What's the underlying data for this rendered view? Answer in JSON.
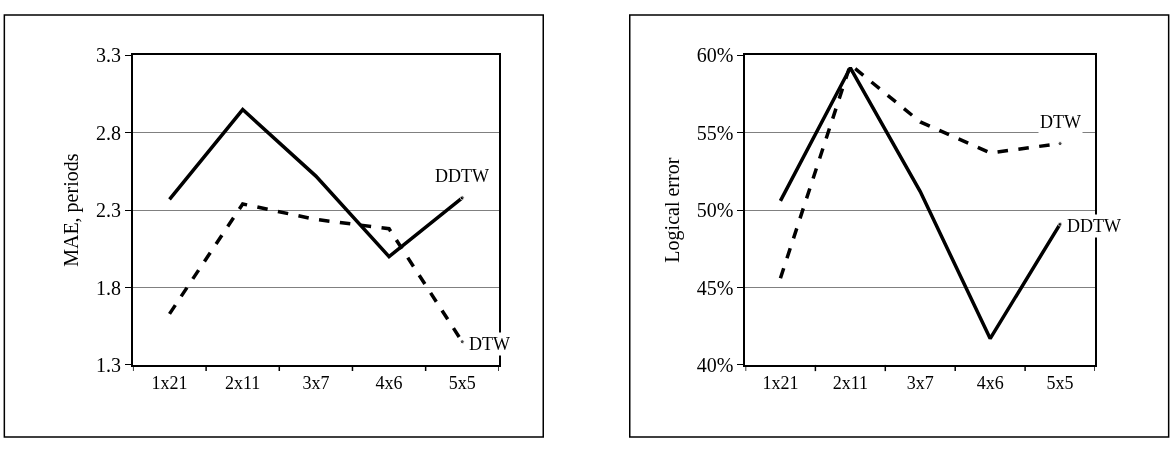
{
  "chart_data": [
    {
      "type": "line",
      "ylabel": "MAE, periods",
      "categories": [
        "1x21",
        "2x11",
        "3x7",
        "4x6",
        "5x5"
      ],
      "series": [
        {
          "name": "DDTW",
          "color": "#000000",
          "line_style": "solid",
          "values": [
            2.37,
            2.95,
            2.52,
            2.0,
            2.38
          ]
        },
        {
          "name": "DTW",
          "color": "#000000",
          "line_style": "dashed",
          "values": [
            1.63,
            2.34,
            2.24,
            2.18,
            1.45
          ]
        }
      ],
      "ylim": [
        1.3,
        3.3
      ],
      "yticks": [
        1.3,
        1.8,
        2.3,
        2.8,
        3.3
      ],
      "grid": "y",
      "marker": "none"
    },
    {
      "type": "line",
      "ylabel": "Logical error",
      "categories": [
        "1x21",
        "2x11",
        "3x7",
        "4x6",
        "5x5"
      ],
      "series": [
        {
          "name": "DDTW",
          "color": "#000000",
          "line_style": "solid",
          "values": [
            50.6,
            59.2,
            51.2,
            41.7,
            49.1
          ]
        },
        {
          "name": "DTW",
          "color": "#000000",
          "line_style": "dashed",
          "values": [
            45.6,
            59.4,
            55.7,
            53.7,
            54.3
          ]
        }
      ],
      "ylim": [
        40,
        60
      ],
      "yticks": [
        {
          "value": 40,
          "label": "40%"
        },
        {
          "value": 45,
          "label": "45%"
        },
        {
          "value": 50,
          "label": "50%"
        },
        {
          "value": 55,
          "label": "55%"
        },
        {
          "value": 60,
          "label": "60%"
        }
      ],
      "grid": "y",
      "marker": "none"
    }
  ]
}
